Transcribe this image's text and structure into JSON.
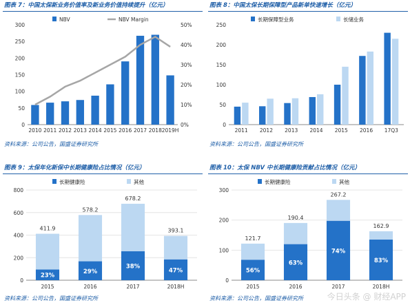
{
  "colors": {
    "accent": "#1f5fa8",
    "dark_bar": "#2472c8",
    "light_bar": "#bcd8f2",
    "line": "#a6a6a6"
  },
  "watermark": "今日头条 @ 财经APP",
  "chart_data": [
    {
      "id": "fig7",
      "type": "bar",
      "title": "图表 7：中国太保新业务价值率及新业务价值持续提升（亿元）",
      "source": "资料来源：公司公告，国盛证券研究所",
      "categories": [
        "2010",
        "2011",
        "2012",
        "2013",
        "2014",
        "2015",
        "2016",
        "2017",
        "2018",
        "2019H"
      ],
      "series": [
        {
          "name": "NBV",
          "kind": "bar",
          "axis": "left",
          "values": [
            59,
            66,
            70,
            74,
            87,
            121,
            190,
            267,
            270,
            148
          ]
        },
        {
          "name": "NBV Margin",
          "kind": "line",
          "axis": "right",
          "values": [
            10,
            14,
            19,
            22,
            26,
            30,
            34,
            40,
            44,
            39
          ]
        }
      ],
      "y_left": {
        "min": 0,
        "max": 300,
        "ticks": [
          "0",
          "50",
          "100",
          "150",
          "200",
          "250",
          "300"
        ]
      },
      "y_right": {
        "min": 0,
        "max": 50,
        "ticks": [
          "0%",
          "10%",
          "20%",
          "30%",
          "40%",
          "50%"
        ]
      },
      "legend": "top"
    },
    {
      "id": "fig8",
      "type": "bar",
      "title": "图表 8：中国太保长期保障型产品新单快速增长（亿元）",
      "source": "资料来源：公司公告，国盛证券研究所",
      "categories": [
        "2011",
        "2012",
        "2013",
        "2014",
        "2015",
        "2016",
        "17Q3"
      ],
      "series": [
        {
          "name": "长期保障型业务",
          "values": [
            45,
            46,
            54,
            69,
            100,
            172,
            230
          ]
        },
        {
          "name": "长储业务",
          "values": [
            55,
            65,
            66,
            76,
            145,
            183,
            215
          ]
        }
      ],
      "y": {
        "min": 0,
        "max": 250,
        "ticks": [
          "0",
          "50",
          "100",
          "150",
          "200",
          "250"
        ]
      },
      "legend": "top"
    },
    {
      "id": "fig9",
      "type": "bar",
      "stacked": true,
      "title": "图表 9：太保年化新保中长期健康险占比情况（亿元）",
      "source": "资料来源：公司公告，国盛证券研究所",
      "categories": [
        "2015",
        "2016",
        "2017",
        "2018H"
      ],
      "totals": [
        "411.9",
        "578.2",
        "678.2",
        "393.1"
      ],
      "percents": [
        "23%",
        "29%",
        "38%",
        "47%"
      ],
      "series": [
        {
          "name": "长期健康险",
          "values": [
            94.7,
            167.7,
            257.7,
            184.8
          ]
        },
        {
          "name": "其他",
          "values": [
            317.2,
            410.5,
            420.5,
            208.3
          ]
        }
      ],
      "y": {
        "min": 0,
        "max": 800,
        "ticks": [
          "0",
          "200",
          "400",
          "600",
          "800"
        ]
      },
      "legend": "top"
    },
    {
      "id": "fig10",
      "type": "bar",
      "stacked": true,
      "title": "图表 10：太保 NBV 中长期健康险贡献占比情况（亿元）",
      "source": "资料来源：公司公告，国盛证券研究所",
      "categories": [
        "2015",
        "2016",
        "2017",
        "2018H"
      ],
      "totals": [
        "121.7",
        "190.4",
        "267.2",
        "162.9"
      ],
      "percents": [
        "56%",
        "63%",
        "74%",
        "83%"
      ],
      "series": [
        {
          "name": "长期健康险",
          "values": [
            68.2,
            120.0,
            197.7,
            135.2
          ]
        },
        {
          "name": "其他",
          "values": [
            53.5,
            70.4,
            69.5,
            27.7
          ]
        }
      ],
      "y": {
        "min": 0,
        "max": 300,
        "ticks": [
          "0",
          "100",
          "200",
          "300"
        ]
      },
      "legend": "top"
    }
  ]
}
